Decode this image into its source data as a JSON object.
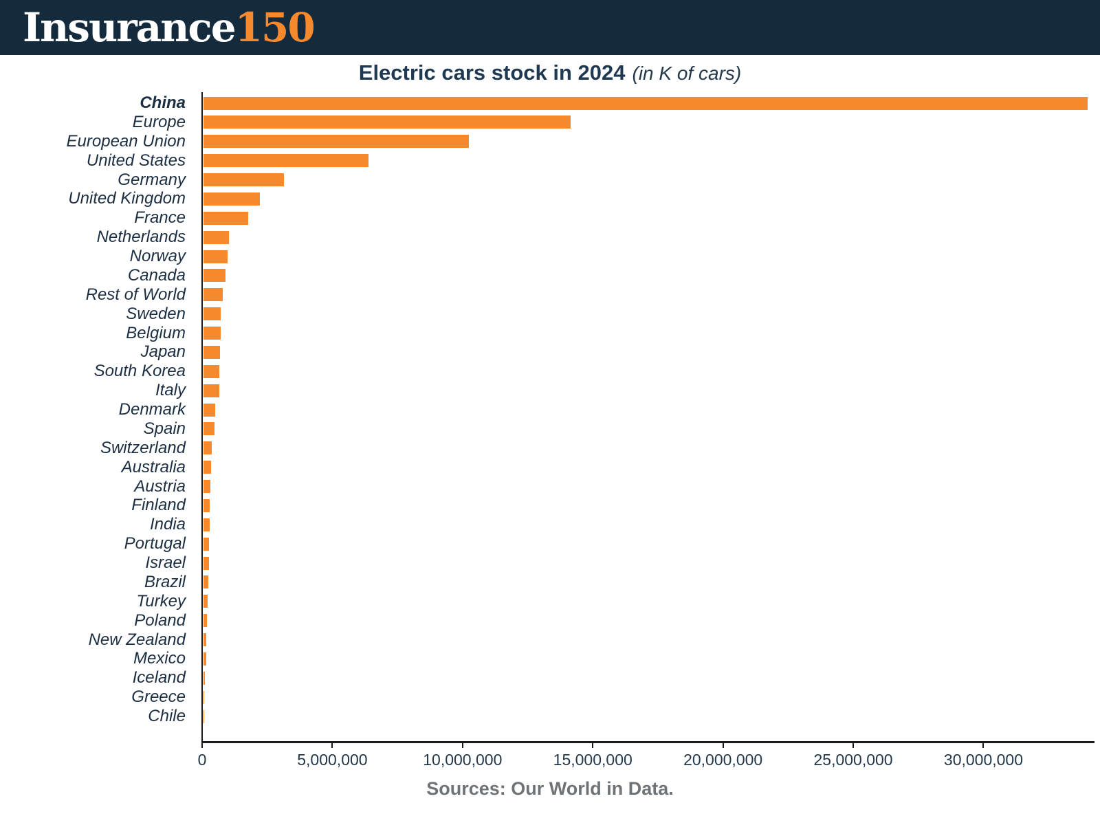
{
  "header": {
    "logo_text": "Insurance",
    "logo_number": "150"
  },
  "title": {
    "main": "Electric cars stock in 2024",
    "subtitle": "(in K of cars)"
  },
  "footer": {
    "sources": "Sources: Our World in Data."
  },
  "colors": {
    "header_background": "#132b3c",
    "bar_orange": "#f6892d",
    "title_navy": "#1e3951",
    "label_navy": "#1c2e42",
    "source_gray": "#6e7378"
  },
  "chart_data": {
    "type": "bar",
    "orientation": "horizontal",
    "title": "Electric cars stock in 2024",
    "subtitle": "(in K of cars)",
    "grid": false,
    "legend": "none",
    "bar_color": "#f6892d",
    "highlighted_category": "China",
    "xlim": [
      0,
      34000000
    ],
    "x_ticks": [
      0,
      5000000,
      10000000,
      15000000,
      20000000,
      25000000,
      30000000
    ],
    "x_tick_labels": [
      "0",
      "5,000,000",
      "10,000,000",
      "15,000,000",
      "20,000,000",
      "25,000,000",
      "30,000,000"
    ],
    "categories": [
      "China",
      "Europe",
      "European Union",
      "United States",
      "Germany",
      "United Kingdom",
      "France",
      "Netherlands",
      "Norway",
      "Canada",
      "Rest of World",
      "Sweden",
      "Belgium",
      "Japan",
      "South Korea",
      "Italy",
      "Denmark",
      "Spain",
      "Switzerland",
      "Australia",
      "Austria",
      "Finland",
      "India",
      "Portugal",
      "Israel",
      "Brazil",
      "Turkey",
      "Poland",
      "New Zealand",
      "Mexico",
      "Iceland",
      "Greece",
      "Chile"
    ],
    "values": [
      33950000,
      14100000,
      10200000,
      6340000,
      3100000,
      2170000,
      1740000,
      980000,
      930000,
      850000,
      750000,
      670000,
      660000,
      640000,
      630000,
      620000,
      450000,
      440000,
      340000,
      310000,
      270000,
      255000,
      250000,
      230000,
      215000,
      210000,
      160000,
      135000,
      125000,
      110000,
      55000,
      50000,
      45000
    ],
    "source": "Sources: Our World in Data."
  }
}
